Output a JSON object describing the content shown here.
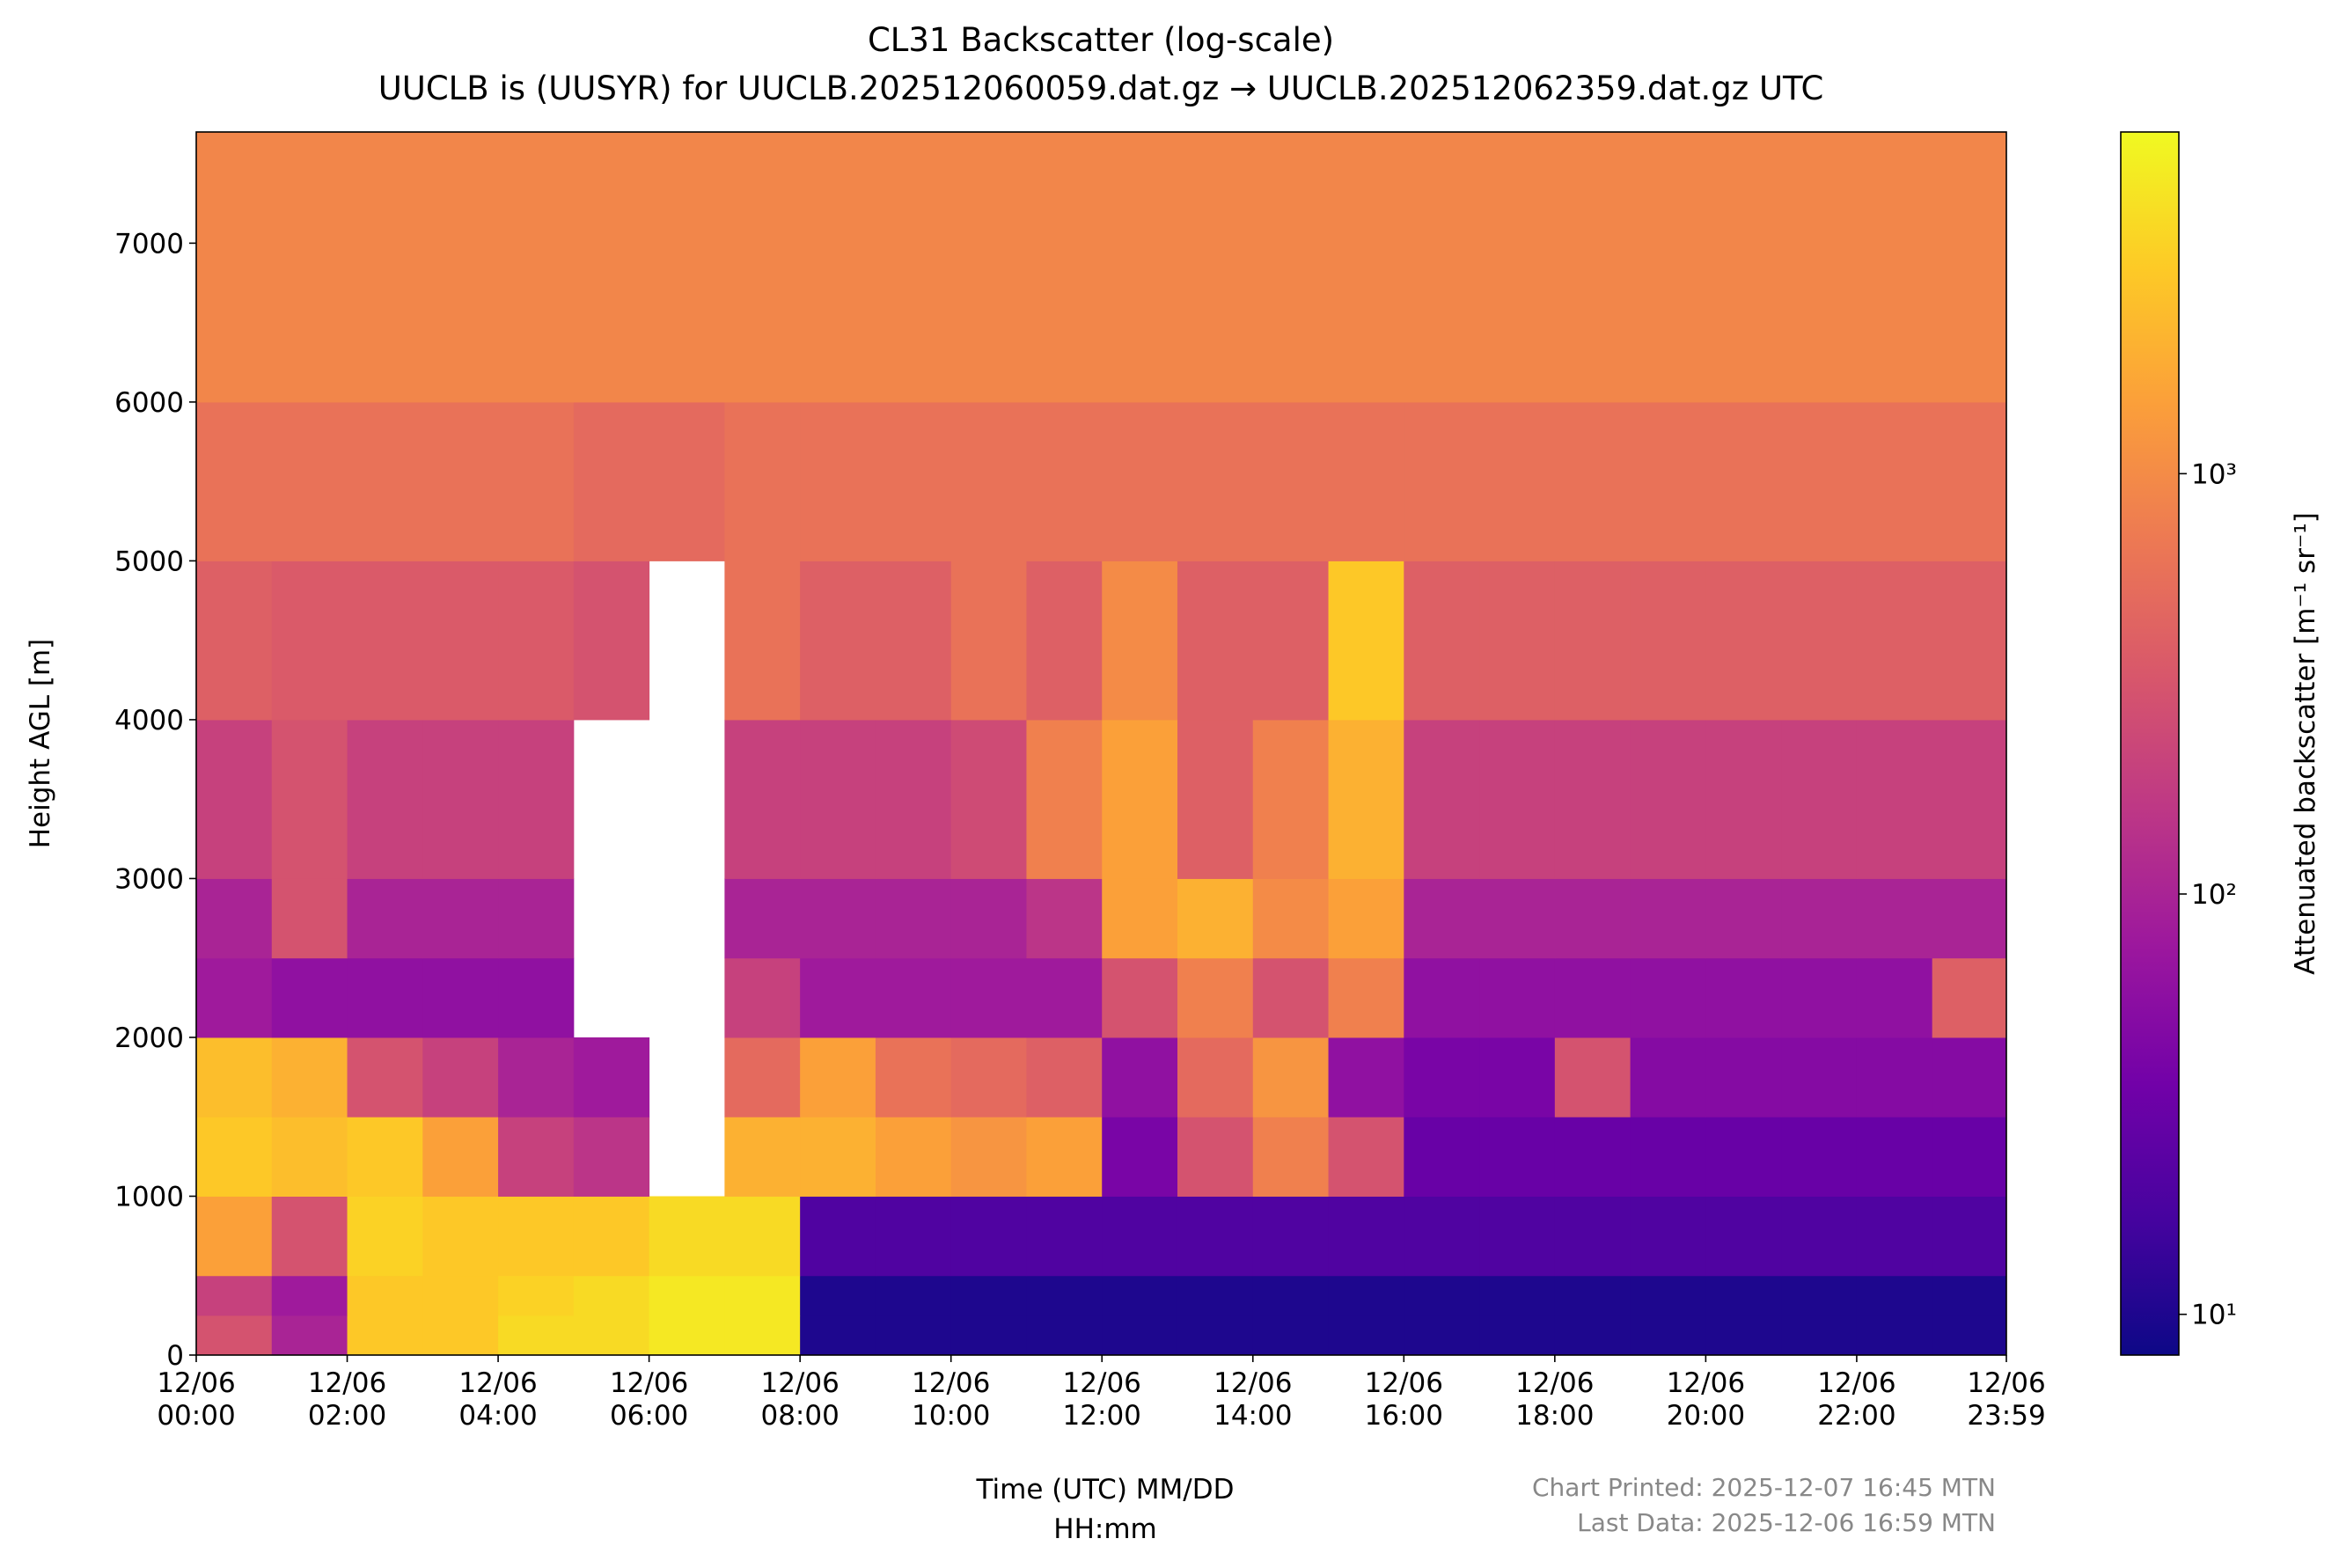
{
  "chart_data": {
    "type": "heatmap",
    "title": "CL31 Backscatter (log-scale)",
    "subtitle": "UUCLB is (UUSYR) for UUCLB.202512060059.dat.gz → UUCLB.202512062359.dat.gz UTC",
    "xlabel": [
      "Time (UTC) MM/DD",
      "HH:mm"
    ],
    "ylabel": "Height AGL [m]",
    "colorbar_label": "Attenuated backscatter [m⁻¹ sr⁻¹]",
    "annotations": [
      "Chart Printed: 2025-12-07 16:45 MTN",
      "Last Data: 2025-12-06 16:59 MTN"
    ],
    "colormap": "plasma",
    "log_color": true,
    "clim": [
      8,
      6500
    ],
    "cticks": [
      {
        "value": 10,
        "label": "10¹"
      },
      {
        "value": 100,
        "label": "10²"
      },
      {
        "value": 1000,
        "label": "10³"
      }
    ],
    "xlim": [
      0,
      23.983
    ],
    "ylim": [
      0,
      7700
    ],
    "xticks": [
      {
        "value": 0,
        "label": [
          "12/06",
          "00:00"
        ]
      },
      {
        "value": 2,
        "label": [
          "12/06",
          "02:00"
        ]
      },
      {
        "value": 4,
        "label": [
          "12/06",
          "04:00"
        ]
      },
      {
        "value": 6,
        "label": [
          "12/06",
          "06:00"
        ]
      },
      {
        "value": 8,
        "label": [
          "12/06",
          "08:00"
        ]
      },
      {
        "value": 10,
        "label": [
          "12/06",
          "10:00"
        ]
      },
      {
        "value": 12,
        "label": [
          "12/06",
          "12:00"
        ]
      },
      {
        "value": 14,
        "label": [
          "12/06",
          "14:00"
        ]
      },
      {
        "value": 16,
        "label": [
          "12/06",
          "16:00"
        ]
      },
      {
        "value": 18,
        "label": [
          "12/06",
          "18:00"
        ]
      },
      {
        "value": 20,
        "label": [
          "12/06",
          "20:00"
        ]
      },
      {
        "value": 22,
        "label": [
          "12/06",
          "22:00"
        ]
      },
      {
        "value": 23.983,
        "label": [
          "12/06",
          "23:59"
        ]
      }
    ],
    "yticks": [
      0,
      1000,
      2000,
      3000,
      4000,
      5000,
      6000,
      7000
    ],
    "x_edges": [
      0,
      1,
      2,
      3,
      4,
      5,
      6,
      7,
      8,
      9,
      10,
      11,
      12,
      13,
      14,
      15,
      16,
      17,
      18,
      19,
      20,
      21,
      22,
      23,
      23.983
    ],
    "y_edges": [
      0,
      250,
      500,
      1000,
      1500,
      2000,
      2500,
      3000,
      4000,
      5000,
      6000,
      7700
    ],
    "z": [
      [
        300,
        100,
        3000,
        3000,
        4000,
        4000,
        5000,
        5000,
        10,
        10,
        10,
        10,
        10,
        10,
        10,
        10,
        10,
        10,
        10,
        10,
        10,
        10,
        10,
        10
      ],
      [
        200,
        80,
        3000,
        3000,
        3500,
        4000,
        5000,
        5000,
        10,
        10,
        10,
        10,
        10,
        10,
        10,
        10,
        10,
        10,
        10,
        10,
        10,
        10,
        10,
        10
      ],
      [
        1500,
        300,
        3500,
        3000,
        3000,
        3000,
        4000,
        4000,
        20,
        20,
        20,
        20,
        20,
        20,
        20,
        20,
        20,
        20,
        20,
        20,
        20,
        20,
        20,
        20
      ],
      [
        3000,
        2500,
        3000,
        1500,
        200,
        150,
        null,
        2000,
        2000,
        1500,
        1200,
        1500,
        40,
        300,
        800,
        300,
        30,
        30,
        30,
        30,
        30,
        30,
        30,
        30
      ],
      [
        2500,
        2000,
        300,
        200,
        100,
        80,
        null,
        500,
        1500,
        600,
        500,
        400,
        60,
        500,
        1200,
        60,
        40,
        40,
        300,
        50,
        50,
        50,
        50,
        50
      ],
      [
        80,
        60,
        60,
        60,
        60,
        null,
        null,
        200,
        80,
        80,
        80,
        80,
        300,
        800,
        300,
        800,
        60,
        60,
        60,
        60,
        60,
        60,
        60,
        400
      ],
      [
        100,
        300,
        100,
        100,
        100,
        null,
        null,
        100,
        100,
        100,
        100,
        150,
        1500,
        2000,
        1000,
        1500,
        100,
        100,
        100,
        100,
        100,
        100,
        100,
        100
      ],
      [
        200,
        300,
        200,
        200,
        200,
        null,
        null,
        200,
        200,
        200,
        250,
        800,
        1500,
        400,
        800,
        2000,
        200,
        200,
        200,
        200,
        200,
        200,
        200,
        200
      ],
      [
        400,
        350,
        350,
        350,
        350,
        300,
        null,
        600,
        400,
        400,
        600,
        400,
        1000,
        400,
        400,
        3000,
        400,
        400,
        400,
        400,
        400,
        400,
        400,
        400
      ],
      [
        600,
        600,
        600,
        600,
        600,
        500,
        500,
        600,
        600,
        600,
        600,
        600,
        600,
        600,
        600,
        600,
        600,
        600,
        600,
        600,
        600,
        600,
        600,
        600
      ],
      [
        900,
        900,
        900,
        900,
        900,
        900,
        900,
        900,
        900,
        900,
        900,
        900,
        900,
        900,
        900,
        900,
        900,
        900,
        900,
        900,
        900,
        900,
        900,
        900
      ]
    ]
  }
}
